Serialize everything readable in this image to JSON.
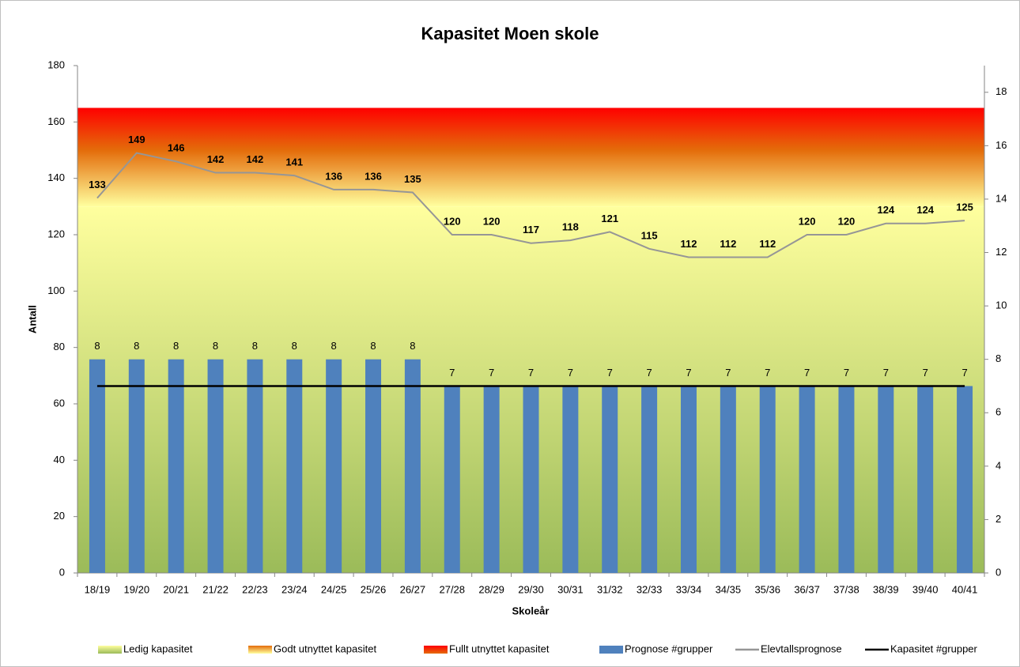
{
  "chart_data": {
    "type": "combo",
    "title": "Kapasitet Moen skole",
    "y_label": "Antall",
    "x_label": "Skoleår",
    "categories": [
      "18/19",
      "19/20",
      "20/21",
      "21/22",
      "22/23",
      "23/24",
      "24/25",
      "25/26",
      "26/27",
      "27/28",
      "28/29",
      "29/30",
      "30/31",
      "31/32",
      "32/33",
      "33/34",
      "34/35",
      "35/36",
      "36/37",
      "37/38",
      "38/39",
      "39/40",
      "40/41"
    ],
    "ylim": [
      0,
      180
    ],
    "yticks": [
      0,
      20,
      40,
      60,
      80,
      100,
      120,
      140,
      160,
      180
    ],
    "y2lim": [
      0,
      19
    ],
    "y2ticks": [
      0,
      2,
      4,
      6,
      8,
      10,
      12,
      14,
      16,
      18
    ],
    "series": [
      {
        "name": "Ledig kapasitet",
        "kind": "stacked-area",
        "colors": [
          "#9bbb59",
          "#ffff9e"
        ],
        "values": [
          130,
          130,
          130,
          130,
          130,
          130,
          130,
          130,
          130,
          130,
          130,
          130,
          130,
          130,
          130,
          130,
          130,
          130,
          130,
          130,
          130,
          130,
          130
        ]
      },
      {
        "name": "Godt utnyttet kapasitet",
        "kind": "stacked-area",
        "colors": [
          "#ffff9e",
          "#e46c0a"
        ],
        "values": [
          20,
          20,
          20,
          20,
          20,
          20,
          20,
          20,
          20,
          20,
          20,
          20,
          20,
          20,
          20,
          20,
          20,
          20,
          20,
          20,
          20,
          20,
          20
        ]
      },
      {
        "name": "Fullt utnyttet kapasitet",
        "kind": "stacked-area",
        "colors": [
          "#e46c0a",
          "#ff0000"
        ],
        "values": [
          15,
          15,
          15,
          15,
          15,
          15,
          15,
          15,
          15,
          15,
          15,
          15,
          15,
          15,
          15,
          15,
          15,
          15,
          15,
          15,
          15,
          15,
          15
        ]
      },
      {
        "name": "Prognose #grupper",
        "kind": "bar",
        "axis": "y2",
        "color": "#4f81bd",
        "values": [
          8,
          8,
          8,
          8,
          8,
          8,
          8,
          8,
          8,
          7,
          7,
          7,
          7,
          7,
          7,
          7,
          7,
          7,
          7,
          7,
          7,
          7,
          7
        ]
      },
      {
        "name": "Elevtallsprognose",
        "kind": "line",
        "color": "#969696",
        "values": [
          133,
          149,
          146,
          142,
          142,
          141,
          136,
          136,
          135,
          120,
          120,
          117,
          118,
          121,
          115,
          112,
          112,
          112,
          120,
          120,
          124,
          124,
          125
        ]
      },
      {
        "name": "Kapasitet #grupper",
        "kind": "line",
        "axis": "y2",
        "color": "#000000",
        "values": [
          7,
          7,
          7,
          7,
          7,
          7,
          7,
          7,
          7,
          7,
          7,
          7,
          7,
          7,
          7,
          7,
          7,
          7,
          7,
          7,
          7,
          7,
          7
        ]
      }
    ]
  }
}
